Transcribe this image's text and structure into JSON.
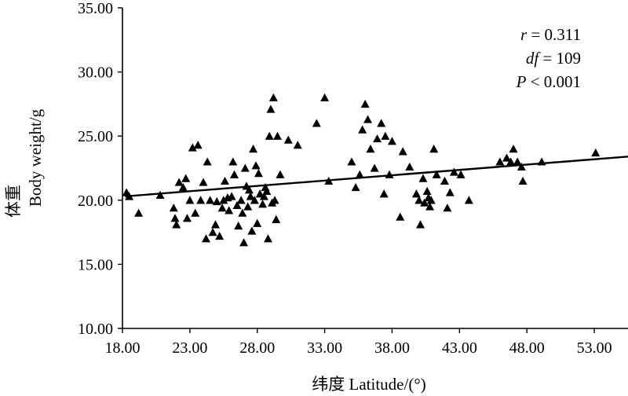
{
  "chart_data": {
    "type": "scatter",
    "xlabel": "纬度 Latitude/(°)",
    "ylabel_cn": "体重",
    "ylabel_en": "Body weight/g",
    "xlim": [
      18,
      55.5
    ],
    "ylim": [
      10,
      35
    ],
    "x_ticks": [
      "18.00",
      "23.00",
      "28.00",
      "33.00",
      "38.00",
      "43.00",
      "48.00",
      "53.00"
    ],
    "x_tick_values": [
      18,
      23,
      28,
      33,
      38,
      43,
      48,
      53
    ],
    "y_ticks": [
      "10.00",
      "15.00",
      "20.00",
      "25.00",
      "30.00",
      "35.00"
    ],
    "y_tick_values": [
      10,
      15,
      20,
      25,
      30,
      35
    ],
    "marker": "triangle",
    "marker_color": "#000000",
    "annotation": {
      "r_symbol": "r",
      "r_text": " = 0.311",
      "df_symbol": "df",
      "df_text": " = 109",
      "p_symbol": "P",
      "p_text": " < 0.001"
    },
    "trendline": {
      "x": [
        18.2,
        55.5
      ],
      "y": [
        20.3,
        23.4
      ]
    },
    "points": [
      [
        18.3,
        20.6
      ],
      [
        18.5,
        20.3
      ],
      [
        19.2,
        19.0
      ],
      [
        20.8,
        20.4
      ],
      [
        21.8,
        19.4
      ],
      [
        21.9,
        18.6
      ],
      [
        22.0,
        18.1
      ],
      [
        22.2,
        21.4
      ],
      [
        22.5,
        21.0
      ],
      [
        22.7,
        21.7
      ],
      [
        22.8,
        18.6
      ],
      [
        23.0,
        20.0
      ],
      [
        23.2,
        24.1
      ],
      [
        23.4,
        19.0
      ],
      [
        23.6,
        24.3
      ],
      [
        23.8,
        20.0
      ],
      [
        24.0,
        21.4
      ],
      [
        24.2,
        17.0
      ],
      [
        24.3,
        23.0
      ],
      [
        24.5,
        20.0
      ],
      [
        24.7,
        17.5
      ],
      [
        24.9,
        18.1
      ],
      [
        25.0,
        19.9
      ],
      [
        25.2,
        17.2
      ],
      [
        25.4,
        19.4
      ],
      [
        25.5,
        20.0
      ],
      [
        25.6,
        21.5
      ],
      [
        25.8,
        20.2
      ],
      [
        25.9,
        19.2
      ],
      [
        26.1,
        20.3
      ],
      [
        26.2,
        23.0
      ],
      [
        26.3,
        22.0
      ],
      [
        26.5,
        19.6
      ],
      [
        26.6,
        18.0
      ],
      [
        26.8,
        20.0
      ],
      [
        26.9,
        19.0
      ],
      [
        27.0,
        16.7
      ],
      [
        27.1,
        22.5
      ],
      [
        27.2,
        21.1
      ],
      [
        27.3,
        19.5
      ],
      [
        27.4,
        20.8
      ],
      [
        27.5,
        20.3
      ],
      [
        27.6,
        17.6
      ],
      [
        27.7,
        24.0
      ],
      [
        27.8,
        20.0
      ],
      [
        27.9,
        22.7
      ],
      [
        28.0,
        18.2
      ],
      [
        28.1,
        22.1
      ],
      [
        28.2,
        20.5
      ],
      [
        28.4,
        19.7
      ],
      [
        28.5,
        20.3
      ],
      [
        28.6,
        21.0
      ],
      [
        28.7,
        20.7
      ],
      [
        28.8,
        17.0
      ],
      [
        28.9,
        25.0
      ],
      [
        29.0,
        27.1
      ],
      [
        29.1,
        19.8
      ],
      [
        29.2,
        28.0
      ],
      [
        29.3,
        20.0
      ],
      [
        29.4,
        18.5
      ],
      [
        29.5,
        25.0
      ],
      [
        29.7,
        22.0
      ],
      [
        30.3,
        24.7
      ],
      [
        31.0,
        24.3
      ],
      [
        32.4,
        26.0
      ],
      [
        33.0,
        28.0
      ],
      [
        33.3,
        21.5
      ],
      [
        35.0,
        23.0
      ],
      [
        35.3,
        21.0
      ],
      [
        35.6,
        22.0
      ],
      [
        35.8,
        25.5
      ],
      [
        36.0,
        27.5
      ],
      [
        36.2,
        26.3
      ],
      [
        36.4,
        24.0
      ],
      [
        36.7,
        22.5
      ],
      [
        36.9,
        24.8
      ],
      [
        37.2,
        26.0
      ],
      [
        37.4,
        20.5
      ],
      [
        37.5,
        25.0
      ],
      [
        37.8,
        22.0
      ],
      [
        38.0,
        24.6
      ],
      [
        38.6,
        18.7
      ],
      [
        38.8,
        23.8
      ],
      [
        39.3,
        22.6
      ],
      [
        39.8,
        20.5
      ],
      [
        40.0,
        20.0
      ],
      [
        40.1,
        18.1
      ],
      [
        40.3,
        21.7
      ],
      [
        40.4,
        19.8
      ],
      [
        40.6,
        20.7
      ],
      [
        40.7,
        20.2
      ],
      [
        40.8,
        19.5
      ],
      [
        40.9,
        20.0
      ],
      [
        41.1,
        24.0
      ],
      [
        41.3,
        22.0
      ],
      [
        41.9,
        21.5
      ],
      [
        42.1,
        19.4
      ],
      [
        42.3,
        20.6
      ],
      [
        42.6,
        22.2
      ],
      [
        43.1,
        22.0
      ],
      [
        43.7,
        20.0
      ],
      [
        46.0,
        23.0
      ],
      [
        46.5,
        23.3
      ],
      [
        46.8,
        23.0
      ],
      [
        47.0,
        24.0
      ],
      [
        47.3,
        23.0
      ],
      [
        47.6,
        22.6
      ],
      [
        47.7,
        21.5
      ],
      [
        49.1,
        23.0
      ],
      [
        53.1,
        23.7
      ]
    ]
  }
}
